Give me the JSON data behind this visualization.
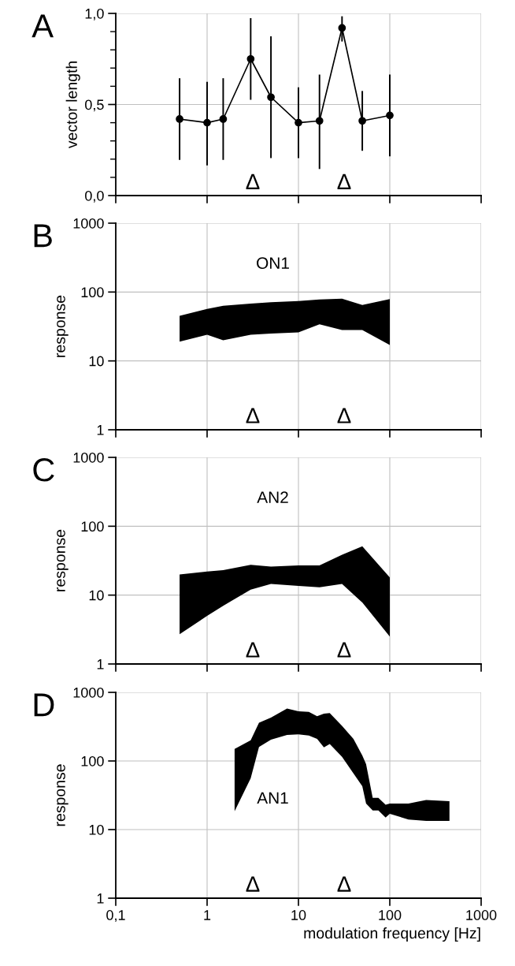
{
  "chart_data": [
    {
      "type": "line",
      "title": "A",
      "ylabel": "vector length",
      "x": [
        0.5,
        1,
        1.5,
        3,
        5,
        10,
        17,
        30,
        50,
        100
      ],
      "series": [
        {
          "color": "#000000",
          "values": [
            0.42,
            0.4,
            0.42,
            0.75,
            0.54,
            0.4,
            0.41,
            0.92,
            0.41,
            0.44
          ],
          "errors": [
            [
              0.2,
              0.64
            ],
            [
              0.17,
              0.62
            ],
            [
              0.2,
              0.64
            ],
            [
              0.53,
              0.97
            ],
            [
              0.21,
              0.87
            ],
            [
              0.21,
              0.59
            ],
            [
              0.15,
              0.66
            ],
            [
              0.85,
              0.98
            ],
            [
              0.25,
              0.57
            ],
            [
              0.22,
              0.66
            ]
          ]
        }
      ],
      "marker": "circle",
      "line_style": "solid",
      "log": "x",
      "grid": true,
      "tick_labels": "y",
      "xlim": [
        0.1,
        1000
      ],
      "ylim": [
        0,
        1
      ],
      "yticks": [
        {
          "value": 0,
          "label": "0,0"
        },
        {
          "value": 0.1,
          "label": null
        },
        {
          "value": 0.2,
          "label": null
        },
        {
          "value": 0.3,
          "label": null
        },
        {
          "value": 0.4,
          "label": null
        },
        {
          "value": 0.5,
          "label": "0,5"
        },
        {
          "value": 0.6,
          "label": null
        },
        {
          "value": 0.7,
          "label": null
        },
        {
          "value": 0.8,
          "label": null
        },
        {
          "value": 0.9,
          "label": null
        },
        {
          "value": 1,
          "label": "1,0"
        }
      ],
      "annotations": [
        "Δ",
        "Δ"
      ]
    },
    {
      "type": "area",
      "title": "B",
      "ylabel": "response",
      "x": [
        0.5,
        1,
        1.5,
        3,
        5,
        10,
        17,
        30,
        50,
        100
      ],
      "series": [
        {
          "color": "#000000",
          "values": [
            null,
            null,
            null,
            null,
            null,
            null,
            null,
            null,
            null,
            null
          ],
          "lower": [
            19,
            24,
            20,
            24,
            25,
            26,
            34,
            28,
            28,
            17
          ],
          "upper": [
            45,
            57,
            63,
            68,
            71,
            74,
            78,
            80,
            65,
            79
          ]
        }
      ],
      "log": "xy",
      "grid": true,
      "tick_labels": "y",
      "xlim": [
        0.1,
        1000
      ],
      "ylim": [
        1,
        1000
      ],
      "yticks": [
        1,
        10,
        100,
        1000
      ],
      "annotations": [
        "ON1",
        "Δ",
        "Δ"
      ]
    },
    {
      "type": "area",
      "title": "C",
      "ylabel": "response",
      "x": [
        0.5,
        1,
        1.5,
        3,
        5,
        10,
        17,
        30,
        50,
        100
      ],
      "series": [
        {
          "color": "#000000",
          "values": [
            null,
            null,
            null,
            null,
            null,
            null,
            null,
            null,
            null,
            null
          ],
          "lower": [
            2.7,
            5,
            7,
            12,
            14.5,
            13.6,
            13,
            14.5,
            7.8,
            2.5
          ],
          "upper": [
            20,
            22,
            23,
            27.5,
            26,
            27,
            27,
            38.5,
            51,
            18
          ]
        }
      ],
      "log": "xy",
      "grid": true,
      "tick_labels": "y",
      "xlim": [
        0.1,
        1000
      ],
      "ylim": [
        1,
        1000
      ],
      "yticks": [
        1,
        10,
        100,
        1000
      ],
      "annotations": [
        "AN2",
        "Δ",
        "Δ"
      ]
    },
    {
      "type": "area",
      "title": "D",
      "ylabel": "response",
      "xlabel": "modulation frequency [Hz]",
      "x": [
        2,
        3,
        3.7,
        5,
        7.5,
        10,
        13,
        16,
        19,
        22,
        30,
        40,
        50,
        55,
        65,
        75,
        90,
        100,
        160,
        250,
        450
      ],
      "series": [
        {
          "color": "#000000",
          "values": [
            null,
            null,
            null,
            null,
            null,
            null,
            null,
            null,
            null,
            null,
            null,
            null,
            null,
            null,
            null,
            null,
            null,
            null,
            null,
            null,
            null
          ],
          "lower": [
            18.5,
            56,
            160,
            205,
            240,
            245,
            235,
            210,
            158,
            177,
            115,
            66,
            43,
            24,
            19,
            19,
            15,
            17,
            14,
            13.4,
            13.4
          ],
          "upper": [
            150,
            200,
            360,
            430,
            580,
            530,
            520,
            450,
            490,
            500,
            325,
            210,
            120,
            90,
            29,
            29,
            23,
            24,
            24,
            27,
            26
          ]
        }
      ],
      "log": "xy",
      "grid": true,
      "xlim": [
        0.1,
        1000
      ],
      "xticks": [
        {
          "value": 0.1,
          "label": "0,1"
        },
        1,
        10,
        100,
        1000
      ],
      "ylim": [
        1,
        1000
      ],
      "yticks": [
        1,
        10,
        100,
        1000
      ],
      "annotations": [
        "AN1",
        "Δ",
        "Δ"
      ]
    }
  ]
}
